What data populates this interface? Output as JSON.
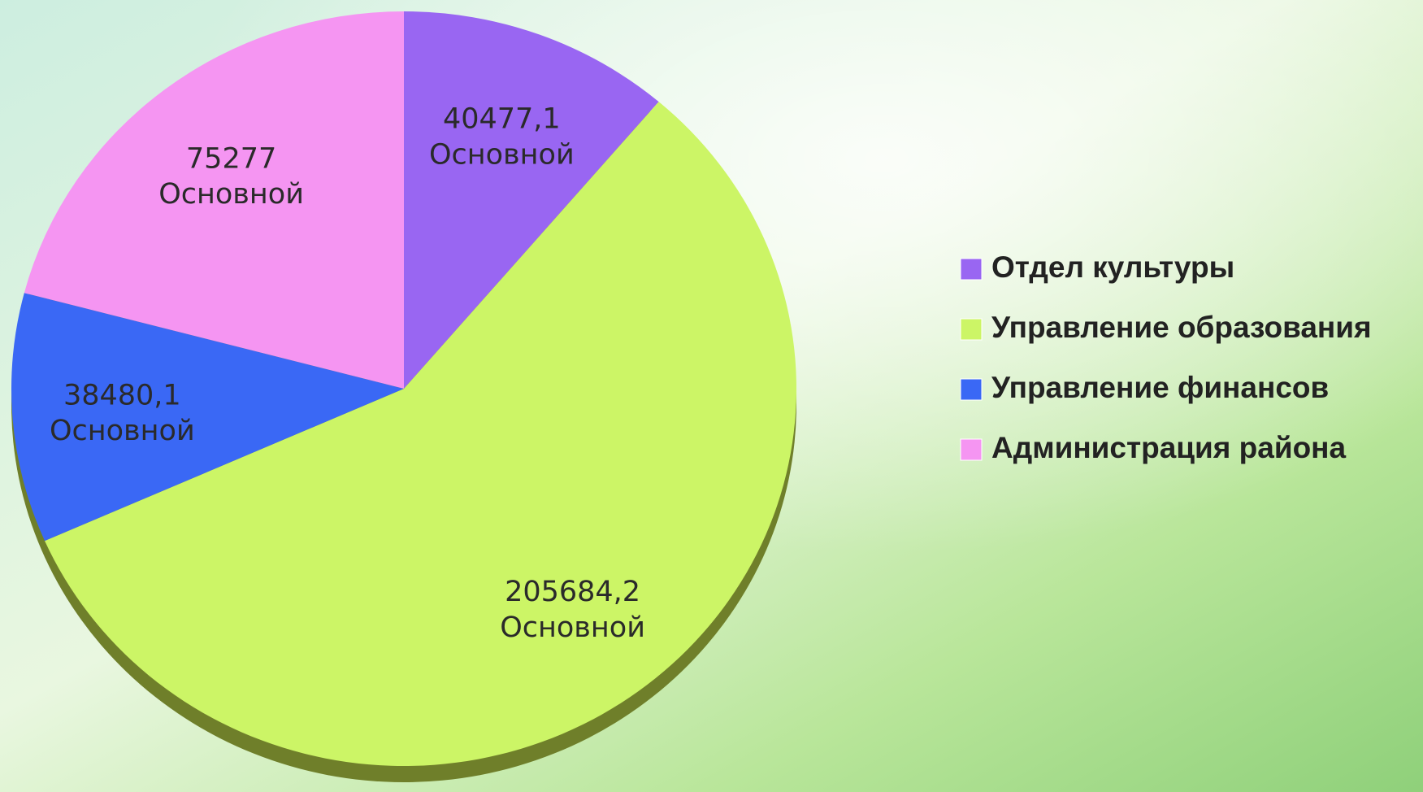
{
  "chart_data": {
    "type": "pie",
    "categories": [
      "Отдел  культуры",
      "Управление образования",
      "Управление финансов",
      "Администрация района"
    ],
    "series": [
      {
        "name": "Основной",
        "values": [
          40477.1,
          205684.2,
          38480.1,
          75277
        ],
        "value_labels": [
          "40477,1",
          "205684,2",
          "38480,1",
          "75277"
        ],
        "colors": [
          "#9966f2",
          "#ccf566",
          "#3a68f5",
          "#f595f2"
        ]
      }
    ],
    "legend": "right"
  }
}
